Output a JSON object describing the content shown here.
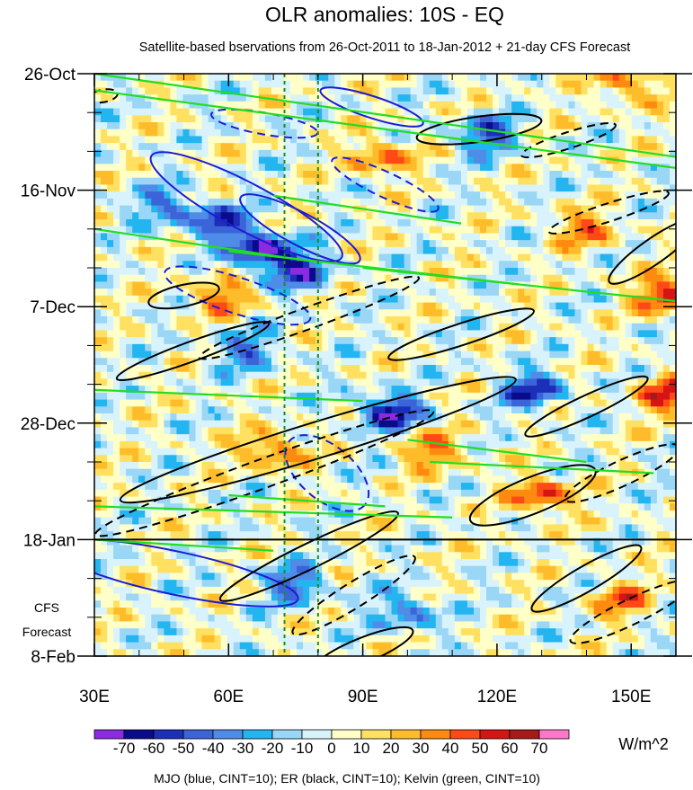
{
  "chart_data": {
    "type": "heatmap",
    "title": "OLR anomalies: 10S - EQ",
    "subtitle": "Satellite-based bservations from 26-Oct-2011 to 18-Jan-2012 + 21-day CFS Forecast",
    "x_axis": {
      "range": [
        30,
        160
      ],
      "ticks": [
        30,
        60,
        90,
        120,
        150
      ],
      "tick_labels": [
        "30E",
        "60E",
        "90E",
        "120E",
        "150E"
      ]
    },
    "y_axis": {
      "range_days": [
        0,
        105
      ],
      "ticks_days": [
        0,
        21,
        42,
        63,
        84,
        105
      ],
      "tick_labels": [
        "26-Oct",
        "16-Nov",
        "7-Dec",
        "28-Dec",
        "18-Jan",
        "8-Feb"
      ],
      "inverted": true
    },
    "forecast": {
      "start_day": 84,
      "end_day": 105,
      "label_line1": "CFS",
      "label_line2": "Forecast"
    },
    "reference_lines_lon": [
      72.5,
      80
    ],
    "colorbar": {
      "unit": "W/m^2",
      "labels": [
        "-70",
        "-60",
        "-50",
        "-40",
        "-30",
        "-20",
        "-10",
        "0",
        "10",
        "20",
        "30",
        "40",
        "50",
        "60",
        "70"
      ],
      "colors": [
        "#8a2be2",
        "#0a0a8c",
        "#1c2fb8",
        "#3a64d8",
        "#4f8ce8",
        "#22b5f0",
        "#9ad6f5",
        "#d8f3fb",
        "#ffffc8",
        "#ffe060",
        "#ffbc2a",
        "#ff8a10",
        "#ff4a18",
        "#d61414",
        "#a81a1a",
        "#ff77c8"
      ]
    },
    "anomaly_features": [
      {
        "lon": 68,
        "day": 32,
        "value": -72
      },
      {
        "lon": 58,
        "day": 27,
        "value": -55
      },
      {
        "lon": 76,
        "day": 36,
        "value": -50
      },
      {
        "lon": 96,
        "day": 61,
        "value": -65
      },
      {
        "lon": 128,
        "day": 57,
        "value": -55
      },
      {
        "lon": 118,
        "day": 11,
        "value": -50
      },
      {
        "lon": 75,
        "day": 92,
        "value": -45
      },
      {
        "lon": 64,
        "day": 50,
        "value": -40
      },
      {
        "lon": 100,
        "day": 97,
        "value": -40
      },
      {
        "lon": 46,
        "day": 24,
        "value": -40
      },
      {
        "lon": 94,
        "day": 15,
        "value": 42
      },
      {
        "lon": 158,
        "day": 40,
        "value": 58
      },
      {
        "lon": 158,
        "day": 58,
        "value": 52
      },
      {
        "lon": 70,
        "day": 68,
        "value": 45
      },
      {
        "lon": 130,
        "day": 76,
        "value": 50
      },
      {
        "lon": 106,
        "day": 68,
        "value": 38
      },
      {
        "lon": 58,
        "day": 40,
        "value": 38
      },
      {
        "lon": 150,
        "day": 2,
        "value": 40
      },
      {
        "lon": 140,
        "day": 28,
        "value": 35
      },
      {
        "lon": 148,
        "day": 95,
        "value": 38
      }
    ],
    "contours": {
      "legend": "MJO (blue, CINT=10); ER (black, CINT=10); Kelvin (green, CINT=10)",
      "mjo_color": "#1c1cd6",
      "er_color": "#000000",
      "kelvin_color": "#22dd22"
    }
  }
}
